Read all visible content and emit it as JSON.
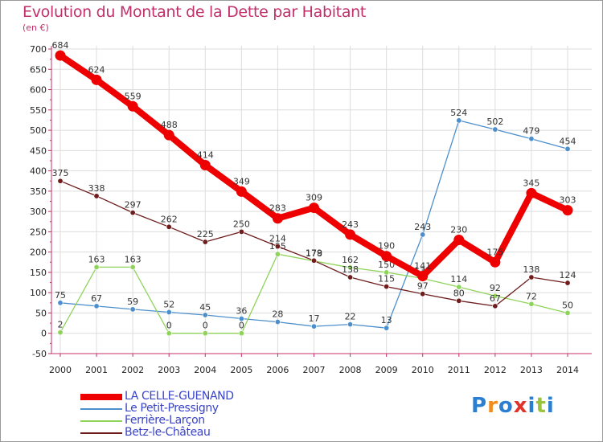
{
  "chart_data": {
    "type": "line",
    "title": "Evolution du Montant de la Dette par Habitant",
    "ylabel": "(en €)",
    "xlabel": "",
    "categories": [
      "2000",
      "2001",
      "2002",
      "2003",
      "2004",
      "2005",
      "2006",
      "2007",
      "2008",
      "2009",
      "2010",
      "2011",
      "2012",
      "2013",
      "2014"
    ],
    "ylim": [
      -50,
      700
    ],
    "yticks": [
      -50,
      0,
      50,
      100,
      150,
      200,
      250,
      300,
      350,
      400,
      450,
      500,
      550,
      600,
      650,
      700
    ],
    "grid": true,
    "legend_position": "bottom-left",
    "series": [
      {
        "name": "LA CELLE-GUENAND",
        "color": "#ee0000",
        "emphasis": true,
        "values": [
          684,
          624,
          559,
          488,
          414,
          349,
          283,
          309,
          243,
          190,
          141,
          230,
          175,
          345,
          303
        ]
      },
      {
        "name": "Le Petit-Pressigny",
        "color": "#4d8fcc",
        "emphasis": false,
        "values": [
          75,
          67,
          59,
          52,
          45,
          36,
          28,
          17,
          22,
          13,
          243,
          524,
          502,
          479,
          454
        ]
      },
      {
        "name": "Ferrière-Larçon",
        "color": "#8fd45a",
        "emphasis": false,
        "values": [
          2,
          163,
          163,
          0,
          0,
          0,
          195,
          178,
          162,
          150,
          135,
          114,
          92,
          72,
          50
        ]
      },
      {
        "name": "Betz-le-Château",
        "color": "#6e1c1c",
        "emphasis": false,
        "values": [
          375,
          338,
          297,
          262,
          225,
          250,
          214,
          179,
          138,
          115,
          97,
          80,
          67,
          138,
          124
        ]
      }
    ]
  },
  "logo": {
    "text": "Proxiti",
    "colors": [
      "#2b7fd1",
      "#f28c1c",
      "#2b7fd1",
      "#e0342a",
      "#2b7fd1",
      "#9ac43a",
      "#2b7fd1"
    ]
  }
}
